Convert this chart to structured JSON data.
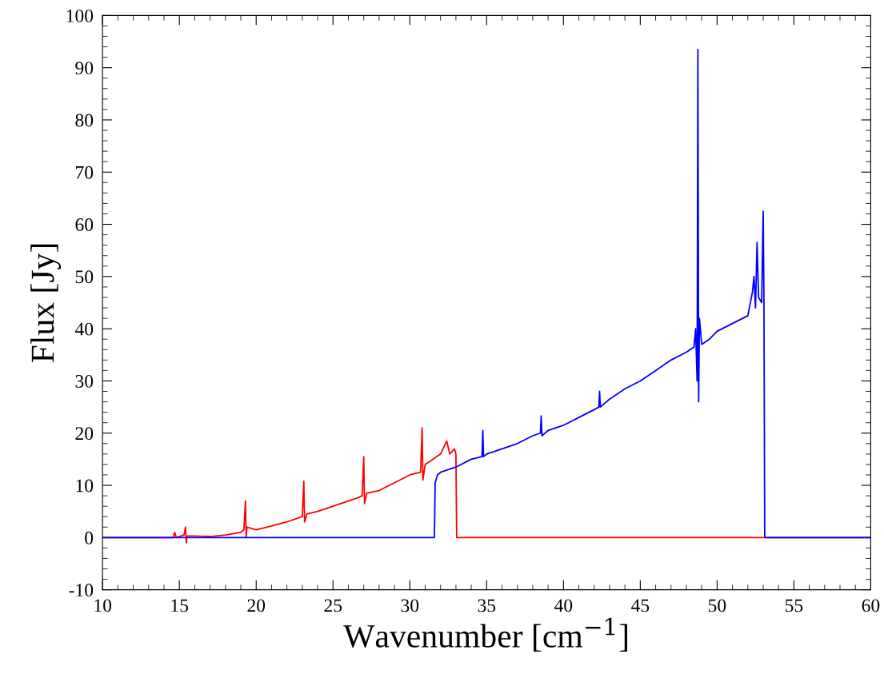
{
  "chart_data": {
    "type": "line",
    "xlabel": "Wavenumber [cm$^{−1}$]",
    "ylabel": "Flux [Jy]",
    "xlim": [
      10,
      60
    ],
    "xticks": [
      10,
      15,
      20,
      25,
      30,
      35,
      40,
      45,
      50,
      55,
      60
    ],
    "ylim": [
      -10,
      100
    ],
    "yticks": [
      -10,
      0,
      10,
      20,
      30,
      40,
      50,
      60,
      70,
      80,
      90,
      100
    ],
    "grid": false,
    "marker": "none",
    "line_style": "solid",
    "series": [
      {
        "color": "#ff0000",
        "x": [
          10,
          14.6,
          14.7,
          14.8,
          15.3,
          15.4,
          15.45,
          15.5,
          16,
          17,
          18,
          19,
          19.2,
          19.3,
          19.35,
          19.4,
          20,
          21,
          22,
          23,
          23.1,
          23.15,
          23.3,
          24,
          25,
          26,
          26.5,
          26.9,
          27.0,
          27.05,
          27.2,
          28,
          29,
          30,
          30.7,
          30.8,
          30.85,
          31,
          31.5,
          32,
          32.4,
          32.6,
          32.9,
          33.0,
          33.05,
          60
        ],
        "values": [
          0,
          0,
          1,
          0,
          0.5,
          2,
          -1,
          0.3,
          0.3,
          0.2,
          0.5,
          1,
          1.5,
          7,
          0,
          2,
          1.5,
          2.2,
          3,
          4,
          10.8,
          3,
          4.5,
          5,
          6,
          7,
          7.5,
          8,
          15.5,
          6.5,
          8.5,
          9,
          10.5,
          12,
          12.5,
          21,
          11,
          14,
          15,
          16,
          18.5,
          16,
          17,
          16,
          0,
          0
        ]
      },
      {
        "color": "#0000ff",
        "x": [
          10,
          31.6,
          31.65,
          31.8,
          32,
          33,
          34,
          34.7,
          34.75,
          34.8,
          35,
          36,
          37,
          38,
          38.5,
          38.55,
          38.6,
          39,
          40,
          41,
          42,
          42.3,
          42.35,
          42.4,
          43,
          44,
          45,
          46,
          47,
          48,
          48.5,
          48.6,
          48.7,
          48.75,
          48.8,
          48.85,
          49,
          49.5,
          50,
          51,
          52,
          52.3,
          52.4,
          52.5,
          52.6,
          52.7,
          52.9,
          53.0,
          53.05,
          53.1,
          60
        ],
        "values": [
          0,
          0,
          10.5,
          12,
          12.5,
          13.5,
          15,
          15.5,
          20.5,
          15.5,
          16,
          17,
          18,
          19.5,
          20,
          23.3,
          19.5,
          20.5,
          21.5,
          23,
          24.5,
          25,
          28,
          25,
          26.5,
          28.5,
          30,
          32,
          34,
          35.5,
          36.5,
          40,
          30,
          93.5,
          26,
          42,
          37,
          38,
          39.5,
          41,
          42.5,
          47,
          50,
          44,
          56.5,
          46,
          45,
          62.5,
          45,
          0,
          0
        ]
      }
    ]
  }
}
